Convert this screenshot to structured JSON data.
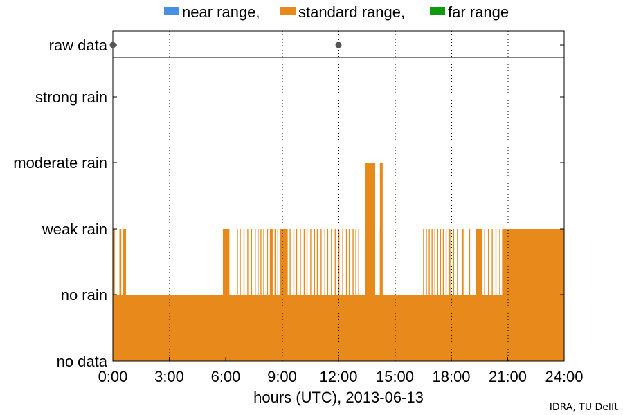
{
  "chart_data": {
    "type": "step-bar",
    "legend": [
      {
        "label": "near range,",
        "color": "#4a90e2"
      },
      {
        "label": "standard range,",
        "color": "#e8891c"
      },
      {
        "label": "far range",
        "color": "#0f9a0f"
      }
    ],
    "y_categories": [
      "no data",
      "no rain",
      "weak rain",
      "moderate rain",
      "strong rain"
    ],
    "raw_data_label": "raw data",
    "raw_data_points_hours": [
      0,
      12
    ],
    "x_ticks": [
      "0:00",
      "3:00",
      "6:00",
      "9:00",
      "12:00",
      "15:00",
      "18:00",
      "21:00",
      "24:00"
    ],
    "xlabel": "hours (UTC), 2013-06-13",
    "xlim_hours": [
      0,
      24
    ],
    "grid": "dotted vertical",
    "legend_placement": "top",
    "series": [
      {
        "name": "standard range",
        "color": "#e8891c",
        "baseline_level": "no rain",
        "weak_rain_intervals_hours": [
          [
            0.0,
            0.1
          ],
          [
            0.35,
            0.45
          ],
          [
            0.55,
            0.7
          ],
          [
            5.85,
            6.2
          ],
          [
            6.6,
            6.65
          ],
          [
            6.75,
            6.8
          ],
          [
            6.95,
            7.0
          ],
          [
            7.15,
            7.2
          ],
          [
            7.35,
            7.4
          ],
          [
            7.55,
            7.6
          ],
          [
            7.7,
            7.75
          ],
          [
            7.85,
            7.9
          ],
          [
            8.0,
            8.05
          ],
          [
            8.2,
            8.25
          ],
          [
            8.35,
            8.5
          ],
          [
            8.6,
            8.65
          ],
          [
            8.75,
            8.8
          ],
          [
            8.9,
            9.3
          ],
          [
            9.4,
            9.45
          ],
          [
            9.6,
            9.65
          ],
          [
            9.75,
            9.8
          ],
          [
            9.95,
            10.0
          ],
          [
            10.15,
            10.2
          ],
          [
            10.3,
            10.35
          ],
          [
            10.5,
            10.55
          ],
          [
            10.7,
            10.75
          ],
          [
            10.85,
            10.9
          ],
          [
            11.05,
            11.1
          ],
          [
            11.25,
            11.3
          ],
          [
            11.4,
            11.45
          ],
          [
            11.6,
            11.65
          ],
          [
            11.8,
            11.85
          ],
          [
            12.0,
            12.05
          ],
          [
            12.2,
            12.25
          ],
          [
            12.4,
            12.45
          ],
          [
            12.55,
            12.6
          ],
          [
            12.75,
            12.8
          ],
          [
            12.9,
            12.95
          ],
          [
            13.05,
            13.1
          ],
          [
            13.8,
            13.95
          ],
          [
            14.2,
            14.3
          ],
          [
            16.5,
            16.55
          ],
          [
            16.65,
            16.7
          ],
          [
            16.8,
            16.85
          ],
          [
            16.95,
            17.0
          ],
          [
            17.1,
            17.15
          ],
          [
            17.25,
            17.3
          ],
          [
            17.4,
            17.45
          ],
          [
            17.55,
            17.6
          ],
          [
            17.7,
            17.75
          ],
          [
            17.85,
            17.95
          ],
          [
            18.1,
            18.15
          ],
          [
            18.3,
            18.35
          ],
          [
            18.55,
            18.65
          ],
          [
            18.95,
            19.0
          ],
          [
            19.3,
            19.65
          ],
          [
            19.75,
            19.8
          ],
          [
            19.95,
            20.0
          ],
          [
            20.15,
            20.2
          ],
          [
            20.35,
            20.4
          ],
          [
            20.55,
            20.6
          ],
          [
            20.7,
            24.0
          ]
        ],
        "moderate_rain_intervals_hours": [
          [
            13.4,
            13.95
          ],
          [
            14.2,
            14.35
          ]
        ]
      }
    ]
  },
  "credit": "IDRA, TU Delft"
}
